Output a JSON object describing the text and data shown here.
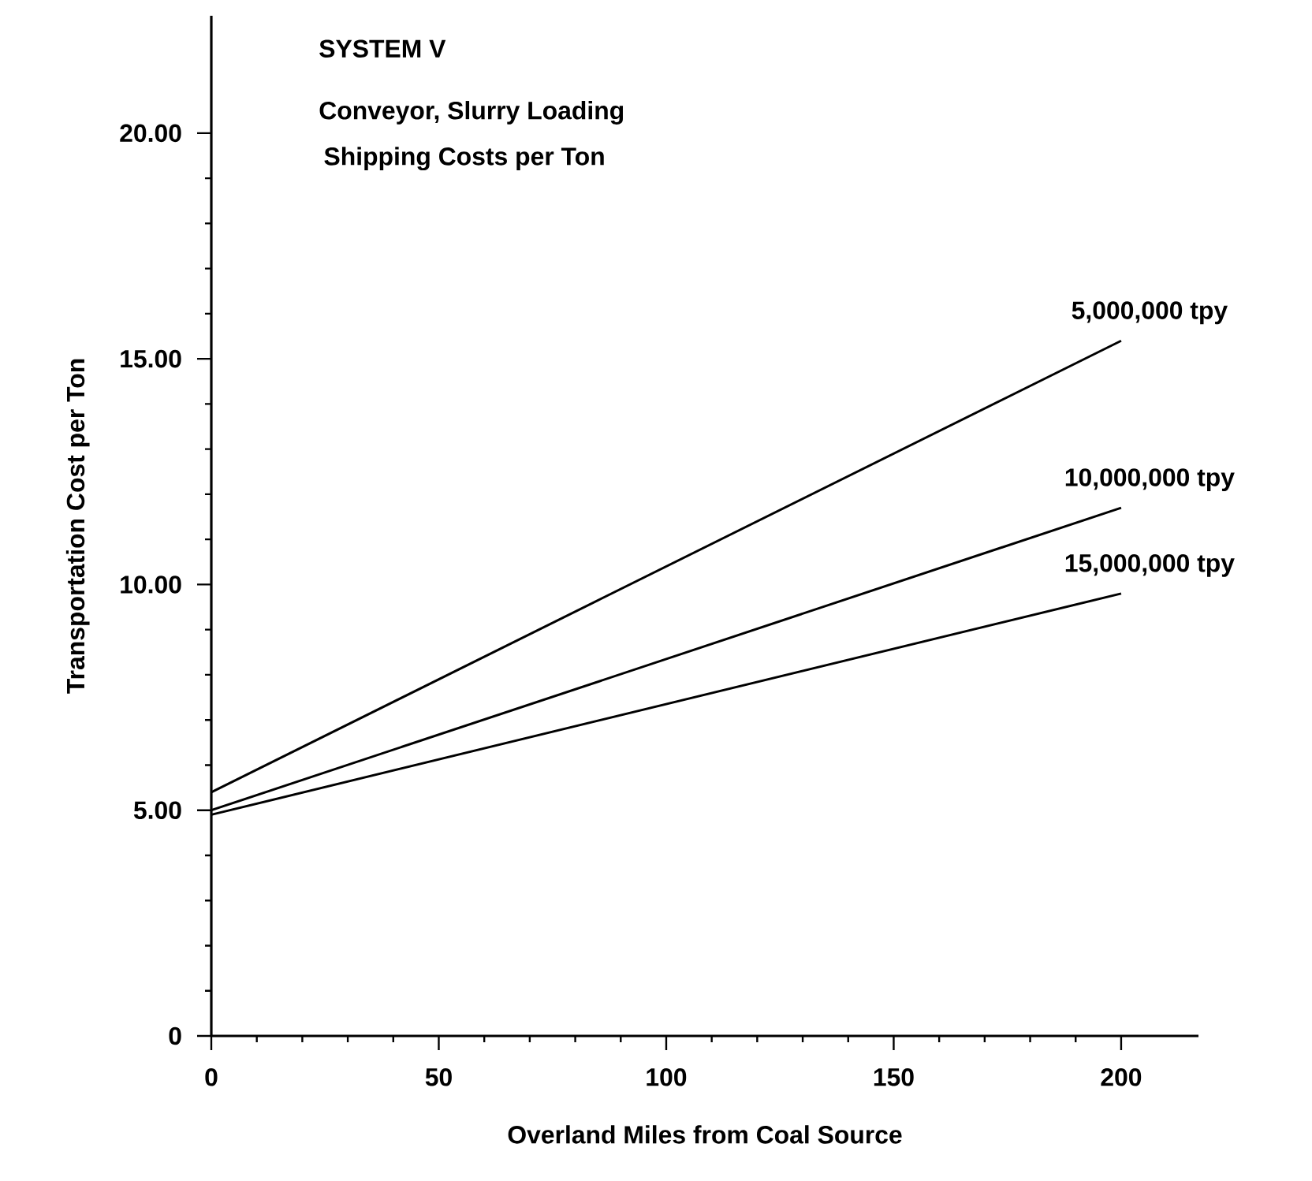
{
  "chart_data": {
    "type": "line",
    "title": "SYSTEM  V",
    "subtitle": "Conveyor, Slurry Loading",
    "annotations": [
      "Shipping Costs per Ton"
    ],
    "xlabel": "Overland Miles from Coal Source",
    "ylabel": "Transportation  Cost per Ton",
    "x": [
      0,
      200
    ],
    "series": [
      {
        "name": "5,000,000 tpy",
        "color": "#000000",
        "values": [
          5.4,
          15.4
        ]
      },
      {
        "name": "10,000,000 tpy",
        "color": "#000000",
        "values": [
          5.0,
          11.7
        ]
      },
      {
        "name": "15,000,000 tpy",
        "color": "#000000",
        "values": [
          4.9,
          9.8
        ]
      }
    ],
    "xlim": [
      0,
      217
    ],
    "ylim": [
      0,
      22.6
    ],
    "xticks": [
      0,
      50,
      100,
      150,
      200
    ],
    "yticks": [
      {
        "value": 0,
        "label": "0"
      },
      {
        "value": 5,
        "label": "5.00"
      },
      {
        "value": 10,
        "label": "10.00"
      },
      {
        "value": 15,
        "label": "15.00"
      },
      {
        "value": 20,
        "label": "20.00"
      }
    ],
    "grid": false,
    "marker": "none",
    "line_style": "solid"
  }
}
